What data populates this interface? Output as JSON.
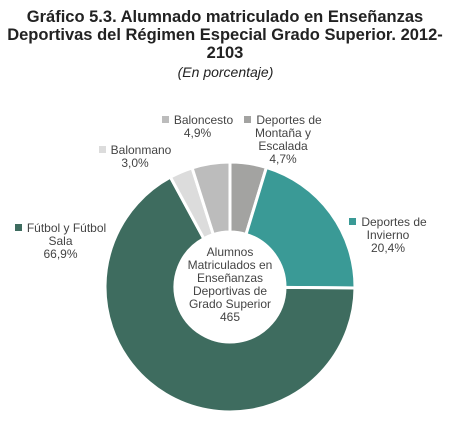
{
  "chart_data": {
    "type": "donut",
    "title": "Gráfico 5.3. Alumnado matriculado en Enseñanzas Deportivas del Régimen Especial Grado Superior. 2012-2103",
    "subtitle": "(En porcentaje)",
    "center_label": "Alumnos Matriculados en Enseñanzas Deportivas de Grado Superior",
    "center_value": 465,
    "categories": [
      "Deportes de Montaña y Escalada",
      "Deportes de Invierno",
      "Fútbol y Fútbol Sala",
      "Balonmano",
      "Baloncesto"
    ],
    "values": [
      4.7,
      20.4,
      66.9,
      3.0,
      4.9
    ],
    "value_labels": [
      "4,7%",
      "20,4%",
      "66,9%",
      "3,0%",
      "4,9%"
    ],
    "colors": [
      "#a3a3a1",
      "#3a9a96",
      "#3e6c5f",
      "#dcdcdc",
      "#bcbcbc"
    ]
  }
}
